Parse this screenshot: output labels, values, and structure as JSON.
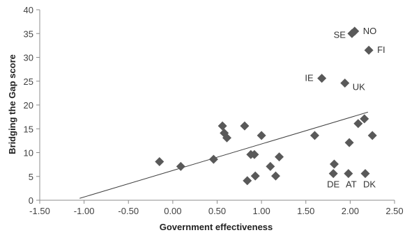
{
  "chart_data": {
    "type": "scatter",
    "title": "",
    "xlabel": "Government effectiveness",
    "ylabel": "Bridging the Gap score",
    "xlim": [
      -1.5,
      2.5
    ],
    "ylim": [
      0,
      40
    ],
    "xticks": [
      "-1.50",
      "-1.00",
      "-0.50",
      "0.00",
      "0.50",
      "1.00",
      "1.50",
      "2.00",
      "2.50"
    ],
    "xtick_values": [
      -1.5,
      -1.0,
      -0.5,
      0.0,
      0.5,
      1.0,
      1.5,
      2.0,
      2.5
    ],
    "yticks": [
      "0",
      "5",
      "10",
      "15",
      "20",
      "25",
      "30",
      "35",
      "40"
    ],
    "ytick_values": [
      0,
      5,
      10,
      15,
      20,
      25,
      30,
      35,
      40
    ],
    "grid": false,
    "marker_color": "#595959",
    "trendline_color": "#404040",
    "axis_color": "#8c8c8c",
    "points": [
      {
        "x": 2.05,
        "y": 35.5,
        "label": "NO"
      },
      {
        "x": 2.02,
        "y": 35.0,
        "label": "SE"
      },
      {
        "x": 2.21,
        "y": 31.5,
        "label": "FI"
      },
      {
        "x": 1.68,
        "y": 25.6,
        "label": "IE"
      },
      {
        "x": 1.94,
        "y": 24.6,
        "label": "UK"
      },
      {
        "x": 1.81,
        "y": 5.6,
        "label": "DE"
      },
      {
        "x": 1.98,
        "y": 5.6,
        "label": "AT"
      },
      {
        "x": 2.17,
        "y": 5.6,
        "label": "DK"
      },
      {
        "x": -0.15,
        "y": 8.1
      },
      {
        "x": 0.09,
        "y": 7.1
      },
      {
        "x": 0.46,
        "y": 8.6
      },
      {
        "x": 0.56,
        "y": 15.6
      },
      {
        "x": 0.58,
        "y": 14.1
      },
      {
        "x": 0.61,
        "y": 13.1
      },
      {
        "x": 0.81,
        "y": 15.6
      },
      {
        "x": 0.84,
        "y": 4.1
      },
      {
        "x": 0.88,
        "y": 9.6
      },
      {
        "x": 0.92,
        "y": 9.6
      },
      {
        "x": 0.93,
        "y": 5.1
      },
      {
        "x": 1.0,
        "y": 13.6
      },
      {
        "x": 1.1,
        "y": 7.1
      },
      {
        "x": 1.16,
        "y": 5.1
      },
      {
        "x": 1.2,
        "y": 9.1
      },
      {
        "x": 1.6,
        "y": 13.6
      },
      {
        "x": 1.82,
        "y": 7.6
      },
      {
        "x": 1.99,
        "y": 12.1
      },
      {
        "x": 2.09,
        "y": 16.1
      },
      {
        "x": 2.16,
        "y": 17.1
      },
      {
        "x": 2.25,
        "y": 13.6
      }
    ],
    "trendline": {
      "x": [
        -1.05,
        2.2
      ],
      "y": [
        0.4,
        18.5
      ]
    }
  }
}
